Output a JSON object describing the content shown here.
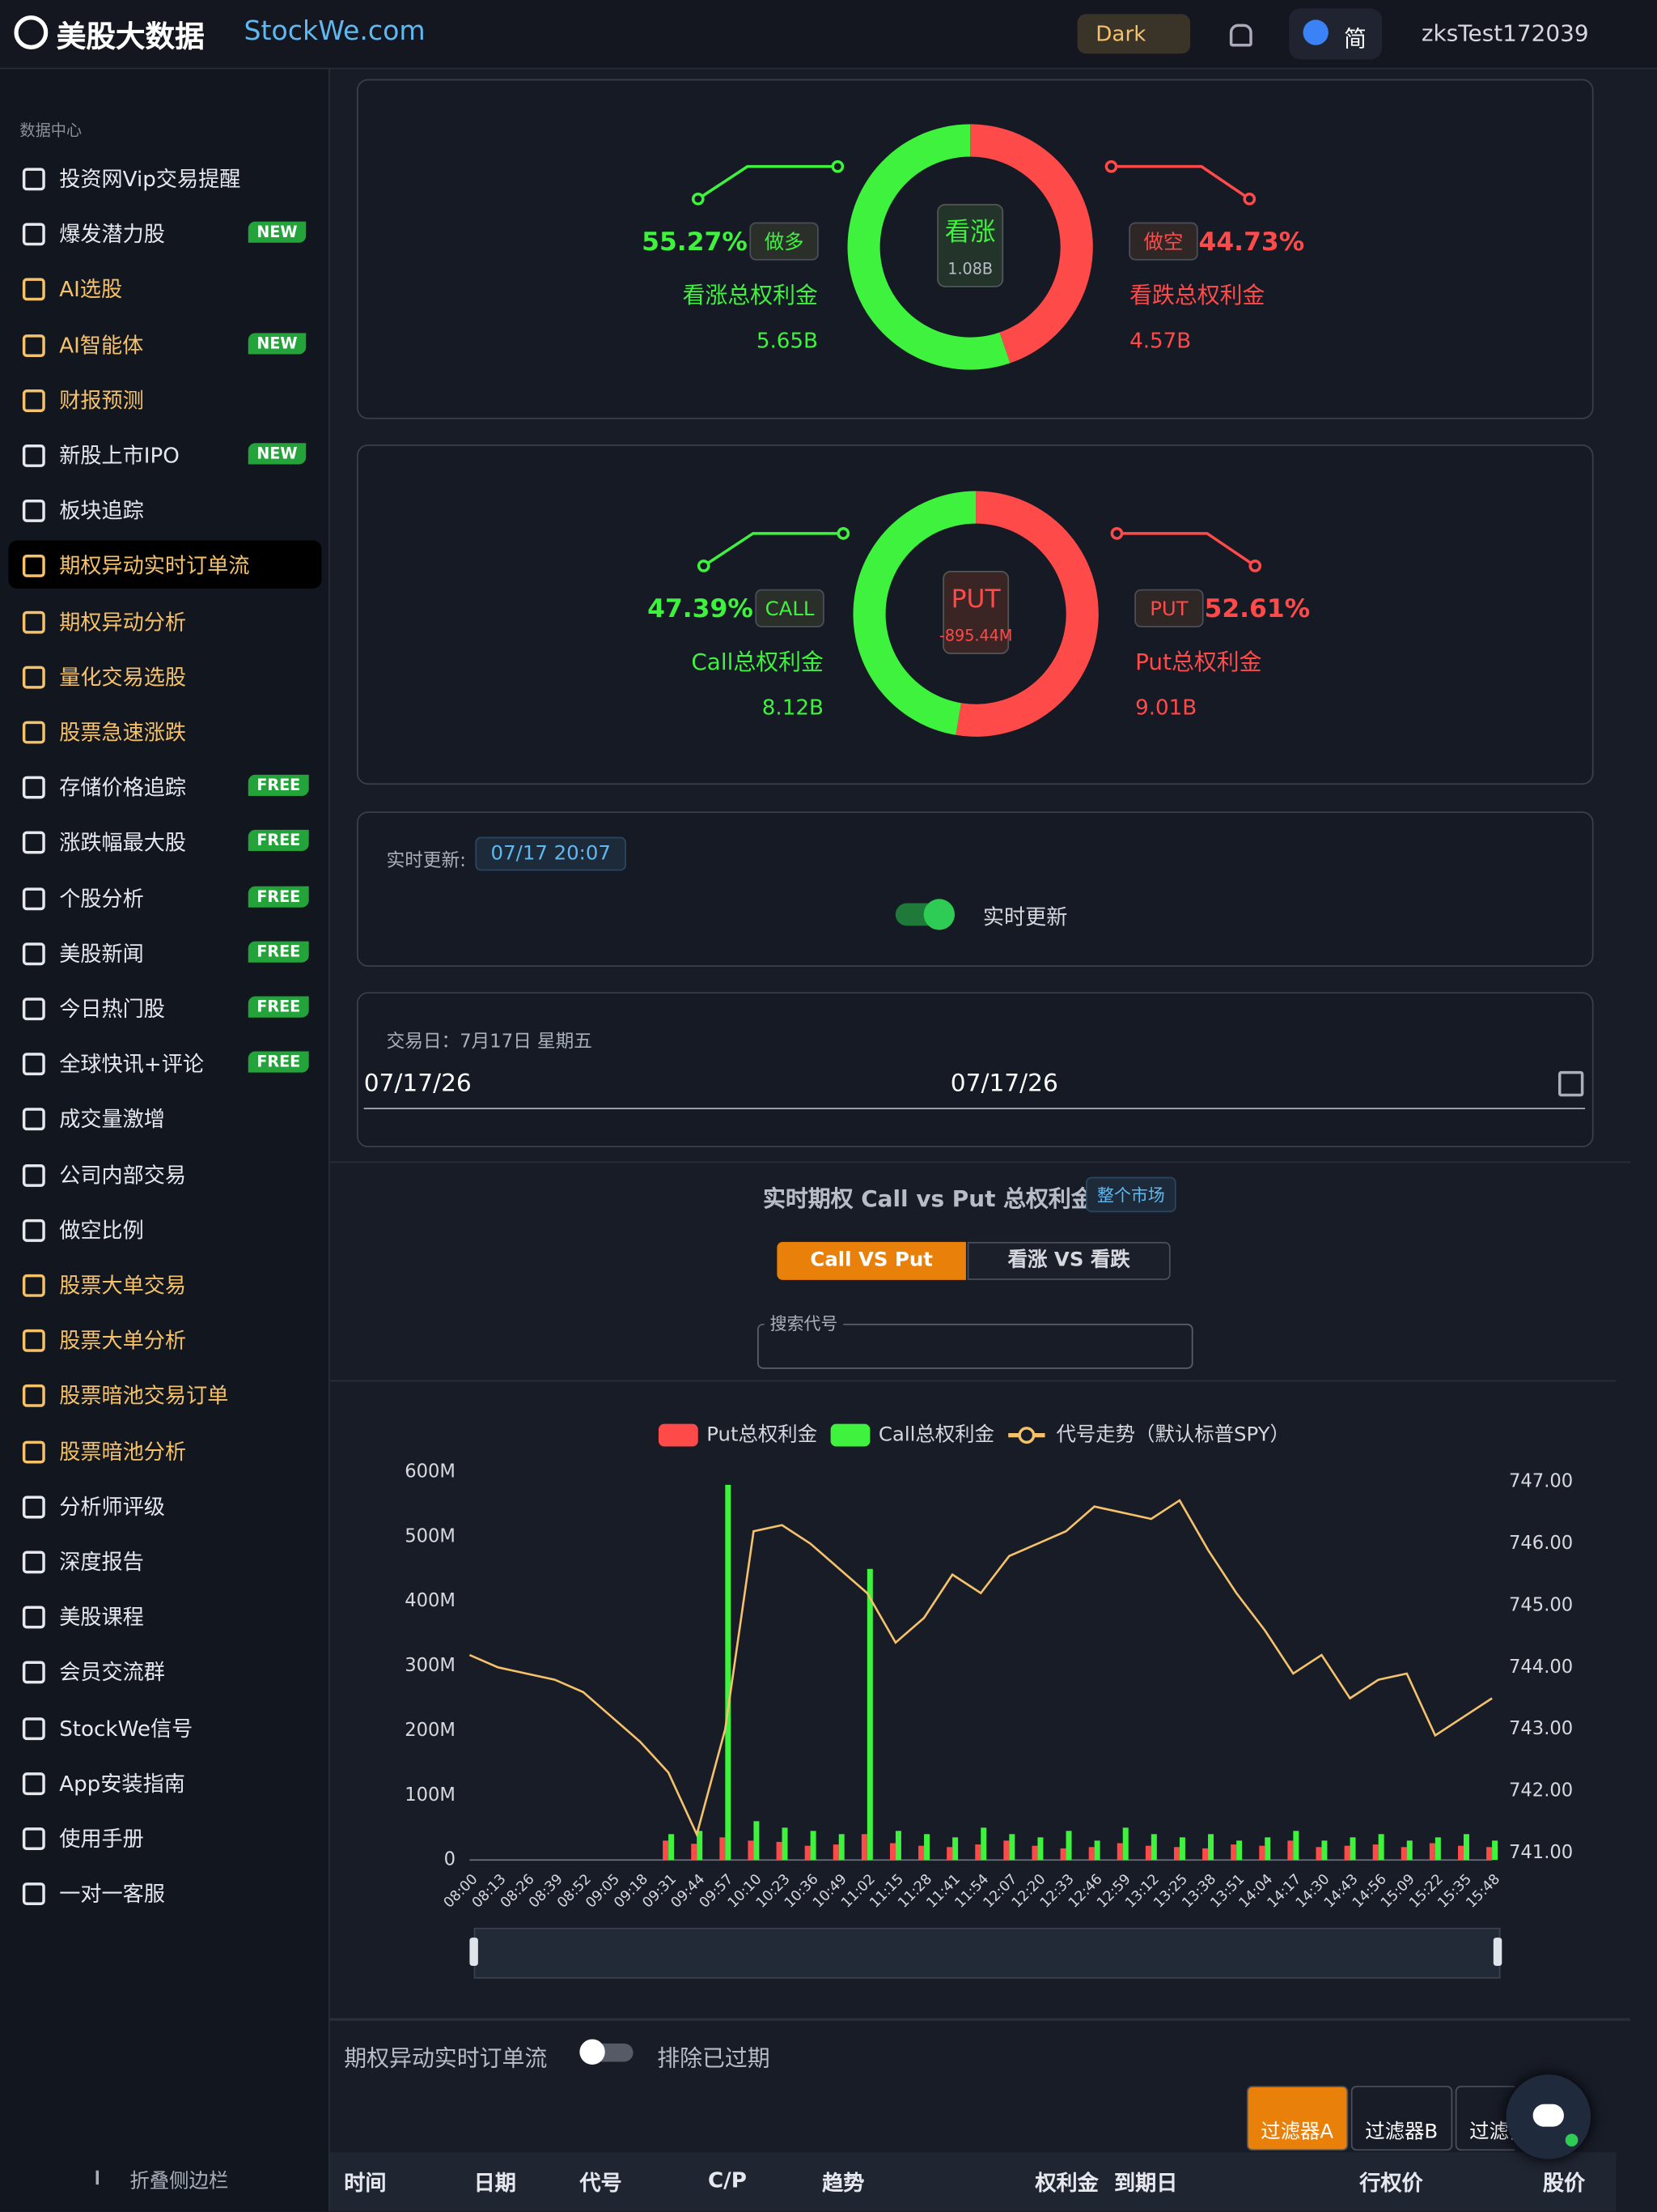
{
  "header": {
    "logo": "美股大数据",
    "site": "StockWe.com",
    "theme": "Dark",
    "lang": "简",
    "user": "zksTest172039"
  },
  "sidebar": {
    "section": "数据中心",
    "collapse": "折叠侧边栏",
    "items": [
      {
        "label": "投资网Vip交易提醒"
      },
      {
        "label": "爆发潜力股",
        "badge": "NEW"
      },
      {
        "label": "AI选股",
        "highlight": true
      },
      {
        "label": "AI智能体",
        "badge": "NEW",
        "highlight": true
      },
      {
        "label": "财报预测",
        "highlight": true
      },
      {
        "label": "新股上市IPO",
        "badge": "NEW"
      },
      {
        "label": "板块追踪"
      },
      {
        "label": "期权异动实时订单流",
        "highlight": true,
        "active": true
      },
      {
        "label": "期权异动分析",
        "highlight": true
      },
      {
        "label": "量化交易选股",
        "highlight": true
      },
      {
        "label": "股票急速涨跌",
        "highlight": true
      },
      {
        "label": "存储价格追踪",
        "badge": "FREE"
      },
      {
        "label": "涨跌幅最大股",
        "badge": "FREE"
      },
      {
        "label": "个股分析",
        "badge": "FREE"
      },
      {
        "label": "美股新闻",
        "badge": "FREE"
      },
      {
        "label": "今日热门股",
        "badge": "FREE"
      },
      {
        "label": "全球快讯+评论",
        "badge": "FREE"
      },
      {
        "label": "成交量激增"
      },
      {
        "label": "公司内部交易"
      },
      {
        "label": "做空比例"
      },
      {
        "label": "股票大单交易",
        "highlight": true
      },
      {
        "label": "股票大单分析",
        "highlight": true
      },
      {
        "label": "股票暗池交易订单",
        "highlight": true
      },
      {
        "label": "股票暗池分析",
        "highlight": true
      },
      {
        "label": "分析师评级"
      },
      {
        "label": "深度报告"
      },
      {
        "label": "美股课程"
      },
      {
        "label": "会员交流群"
      },
      {
        "label": "StockWe信号"
      },
      {
        "label": "App安装指南"
      },
      {
        "label": "使用手册"
      },
      {
        "label": "一对一客服"
      }
    ]
  },
  "chart_data": [
    {
      "type": "pie",
      "center_label": "看涨",
      "center_value": "1.08B",
      "categories": [
        "做多",
        "做空"
      ],
      "values": [
        55.27,
        44.73
      ],
      "value_labels": [
        "55.27%",
        "44.73%"
      ],
      "colors": [
        "#3ef23e",
        "#ff4a4a"
      ],
      "labels": [
        "看涨总权利金",
        "看跌总权利金"
      ],
      "amounts": [
        "5.65B",
        "4.57B"
      ]
    },
    {
      "type": "pie",
      "center_label": "PUT",
      "center_value": "-895.44M",
      "categories": [
        "CALL",
        "PUT"
      ],
      "values": [
        47.39,
        52.61
      ],
      "value_labels": [
        "47.39%",
        "52.61%"
      ],
      "colors": [
        "#3ef23e",
        "#ff4a4a"
      ],
      "labels": [
        "Call总权利金",
        "Put总权利金"
      ],
      "amounts": [
        "8.12B",
        "9.01B"
      ]
    },
    {
      "type": "bar",
      "categories": [
        "08:00",
        "08:13",
        "08:26",
        "08:39",
        "08:52",
        "09:05",
        "09:18",
        "09:31",
        "09:44",
        "09:57",
        "10:10",
        "10:23",
        "10:36",
        "10:49",
        "11:02",
        "11:15",
        "11:28",
        "11:41",
        "11:54",
        "12:07",
        "12:20",
        "12:33",
        "12:46",
        "12:59",
        "13:12",
        "13:25",
        "13:38",
        "13:51",
        "14:04",
        "14:17",
        "14:30",
        "14:43",
        "14:56",
        "15:09",
        "15:22",
        "15:35",
        "15:48"
      ],
      "series": [
        {
          "name": "Put总权利金",
          "color": "#ff4a4a",
          "values": [
            0,
            0,
            0,
            0,
            0,
            0,
            0,
            30,
            25,
            35,
            30,
            28,
            22,
            24,
            40,
            26,
            22,
            20,
            24,
            30,
            22,
            18,
            20,
            26,
            22,
            20,
            18,
            24,
            22,
            30,
            20,
            22,
            24,
            20,
            26,
            22,
            20
          ]
        },
        {
          "name": "Call总权利金",
          "color": "#3ef23e",
          "values": [
            0,
            0,
            0,
            0,
            0,
            0,
            0,
            40,
            45,
            580,
            60,
            50,
            45,
            40,
            450,
            45,
            40,
            35,
            50,
            40,
            35,
            45,
            30,
            50,
            40,
            35,
            40,
            30,
            35,
            45,
            30,
            35,
            40,
            30,
            35,
            40,
            30
          ]
        },
        {
          "name": "代号走势（默认标普SPY）",
          "color": "#f5c26b",
          "axis": "y2",
          "values": [
            744.2,
            744.0,
            743.9,
            743.8,
            743.6,
            743.2,
            742.8,
            742.3,
            741.3,
            743.0,
            746.2,
            746.3,
            746.0,
            745.6,
            745.2,
            744.4,
            744.8,
            745.5,
            745.2,
            745.8,
            746.0,
            746.2,
            746.6,
            746.5,
            746.4,
            746.7,
            745.9,
            745.2,
            744.6,
            743.9,
            744.2,
            743.5,
            743.8,
            743.9,
            742.9,
            743.2,
            743.5
          ]
        }
      ],
      "ylim": [
        0,
        600
      ],
      "yticks": [
        {
          "value": 0,
          "label": "0"
        },
        {
          "value": 100,
          "label": "100M"
        },
        {
          "value": 200,
          "label": "200M"
        },
        {
          "value": 300,
          "label": "300M"
        },
        {
          "value": 400,
          "label": "400M"
        },
        {
          "value": 500,
          "label": "500M"
        },
        {
          "value": 600,
          "label": "600M"
        }
      ],
      "y2lim": [
        741,
        747
      ],
      "y2ticks": [
        {
          "value": 741,
          "label": "741.00"
        },
        {
          "value": 742,
          "label": "742.00"
        },
        {
          "value": 743,
          "label": "743.00"
        },
        {
          "value": 744,
          "label": "744.00"
        },
        {
          "value": 745,
          "label": "745.00"
        },
        {
          "value": 746,
          "label": "746.00"
        },
        {
          "value": 747,
          "label": "747.00"
        }
      ]
    }
  ],
  "realtime": {
    "label": "实时更新:",
    "time": "07/17 20:07",
    "toggle": "实时更新"
  },
  "date": {
    "label": "交易日：7月17日 星期五",
    "start": "07/17/26",
    "end": "07/17/26"
  },
  "section": {
    "title": "实时期权 Call vs Put 总权利金",
    "badge": "整个市场",
    "tabs": [
      "Call VS Put",
      "看涨 VS 看跌"
    ],
    "search": "搜索代号"
  },
  "flow": {
    "title": "期权异动实时订单流",
    "toggle": "排除已过期",
    "filters": [
      "过滤器A",
      "过滤器B",
      "过滤器C"
    ],
    "columns": [
      "时间",
      "日期",
      "代号",
      "C/P",
      "趋势",
      "权利金",
      "到期日",
      "行权价",
      "股价"
    ]
  }
}
